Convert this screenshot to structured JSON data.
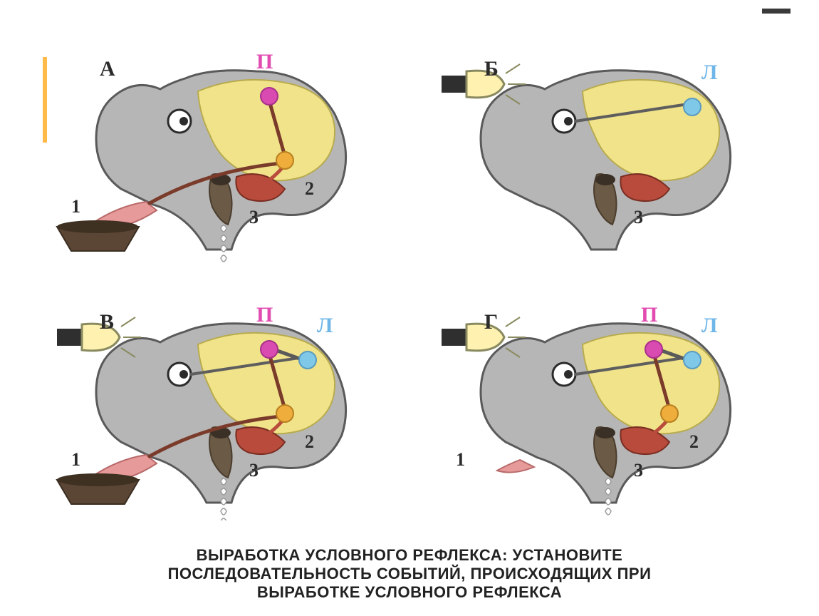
{
  "figure": {
    "type": "infographic",
    "background_color": "#ffffff",
    "orange_tick_color": "#ffba4a",
    "panel_letter_font": "Times New Roman",
    "panel_letter_fontsize": 30,
    "panel_letter_color": "#2b2b2b",
    "number_font": "Times New Roman",
    "number_fontsize": 26,
    "number_color": "#2b2b2b",
    "letter_P": {
      "text": "П",
      "color": "#e24bb0",
      "fontsize": 30
    },
    "letter_L": {
      "text": "Л",
      "color": "#6fb6e8",
      "fontsize": 30
    },
    "colors": {
      "head_fill": "#b6b6b6",
      "head_stroke": "#5a5a5a",
      "brain": "#f1e38a",
      "brain_stroke": "#b8ab4e",
      "eye_white": "#ffffff",
      "eye_black": "#2b2b2b",
      "tongue": "#e79a9a",
      "gland": "#b84b3c",
      "bowl": "#5b4636",
      "saliva": "#ffffff",
      "saliva_stroke": "#9a9a9a",
      "lamp_body": "#2f2f2f",
      "bulb_fill": "#fff2b0",
      "bulb_stroke": "#8a8a60",
      "node_P": "#d94bb0",
      "node_P_stroke": "#a7308a",
      "node_L": "#7fc8e8",
      "node_L_stroke": "#5a9bc0",
      "node_O": "#efae3c",
      "node_O_stroke": "#b97f1f",
      "seg_taste": "#7a3b2a",
      "seg_gland": "#b84b3c",
      "seg_optic": "#5e5e5e",
      "seg_PL": "#5a5a5a"
    },
    "panels": [
      {
        "key": "A",
        "letter": "А",
        "has_bowl": true,
        "has_lamp": false,
        "has_saliva": true,
        "saliva_count": 4,
        "show_P": true,
        "show_L": false,
        "numbers": [
          "1",
          "2",
          "3"
        ],
        "show_node_P": true,
        "show_node_L": false,
        "show_node_O": true,
        "show_seg_taste": true,
        "show_seg_gland": true,
        "show_seg_optic": false,
        "show_seg_PO": true,
        "show_seg_PL": false
      },
      {
        "key": "B",
        "letter": "Б",
        "has_bowl": false,
        "has_lamp": true,
        "has_saliva": false,
        "saliva_count": 0,
        "show_P": false,
        "show_L": true,
        "numbers": [
          "",
          "",
          "3"
        ],
        "show_node_P": false,
        "show_node_L": true,
        "show_node_O": false,
        "show_seg_taste": false,
        "show_seg_gland": false,
        "show_seg_optic": true,
        "show_seg_PO": false,
        "show_seg_PL": false
      },
      {
        "key": "V",
        "letter": "В",
        "has_bowl": true,
        "has_lamp": true,
        "has_saliva": true,
        "saliva_count": 5,
        "show_P": true,
        "show_L": true,
        "numbers": [
          "1",
          "2",
          "3"
        ],
        "show_node_P": true,
        "show_node_L": true,
        "show_node_O": true,
        "show_seg_taste": true,
        "show_seg_gland": true,
        "show_seg_optic": true,
        "show_seg_PO": true,
        "show_seg_PL": true
      },
      {
        "key": "G",
        "letter": "Г",
        "has_bowl": false,
        "has_lamp": true,
        "has_saliva": true,
        "saliva_count": 4,
        "short_tongue": true,
        "show_P": true,
        "show_L": true,
        "numbers": [
          "1",
          "2",
          "3"
        ],
        "show_node_P": true,
        "show_node_L": true,
        "show_node_O": true,
        "show_seg_taste": false,
        "show_seg_gland": true,
        "show_seg_optic": true,
        "show_seg_PO": true,
        "show_seg_PL": true
      }
    ],
    "caption_line1": "ВЫРАБОТКА УСЛОВНОГО РЕФЛЕКСА: УСТАНОВИТЕ",
    "caption_line2": "ПОСЛЕДОВАТЕЛЬНОСТЬ СОБЫТИЙ, ПРОИСХОДЯЩИХ ПРИ",
    "caption_line3": "ВЫРАБОТКЕ УСЛОВНОГО РЕФЛЕКСА"
  }
}
